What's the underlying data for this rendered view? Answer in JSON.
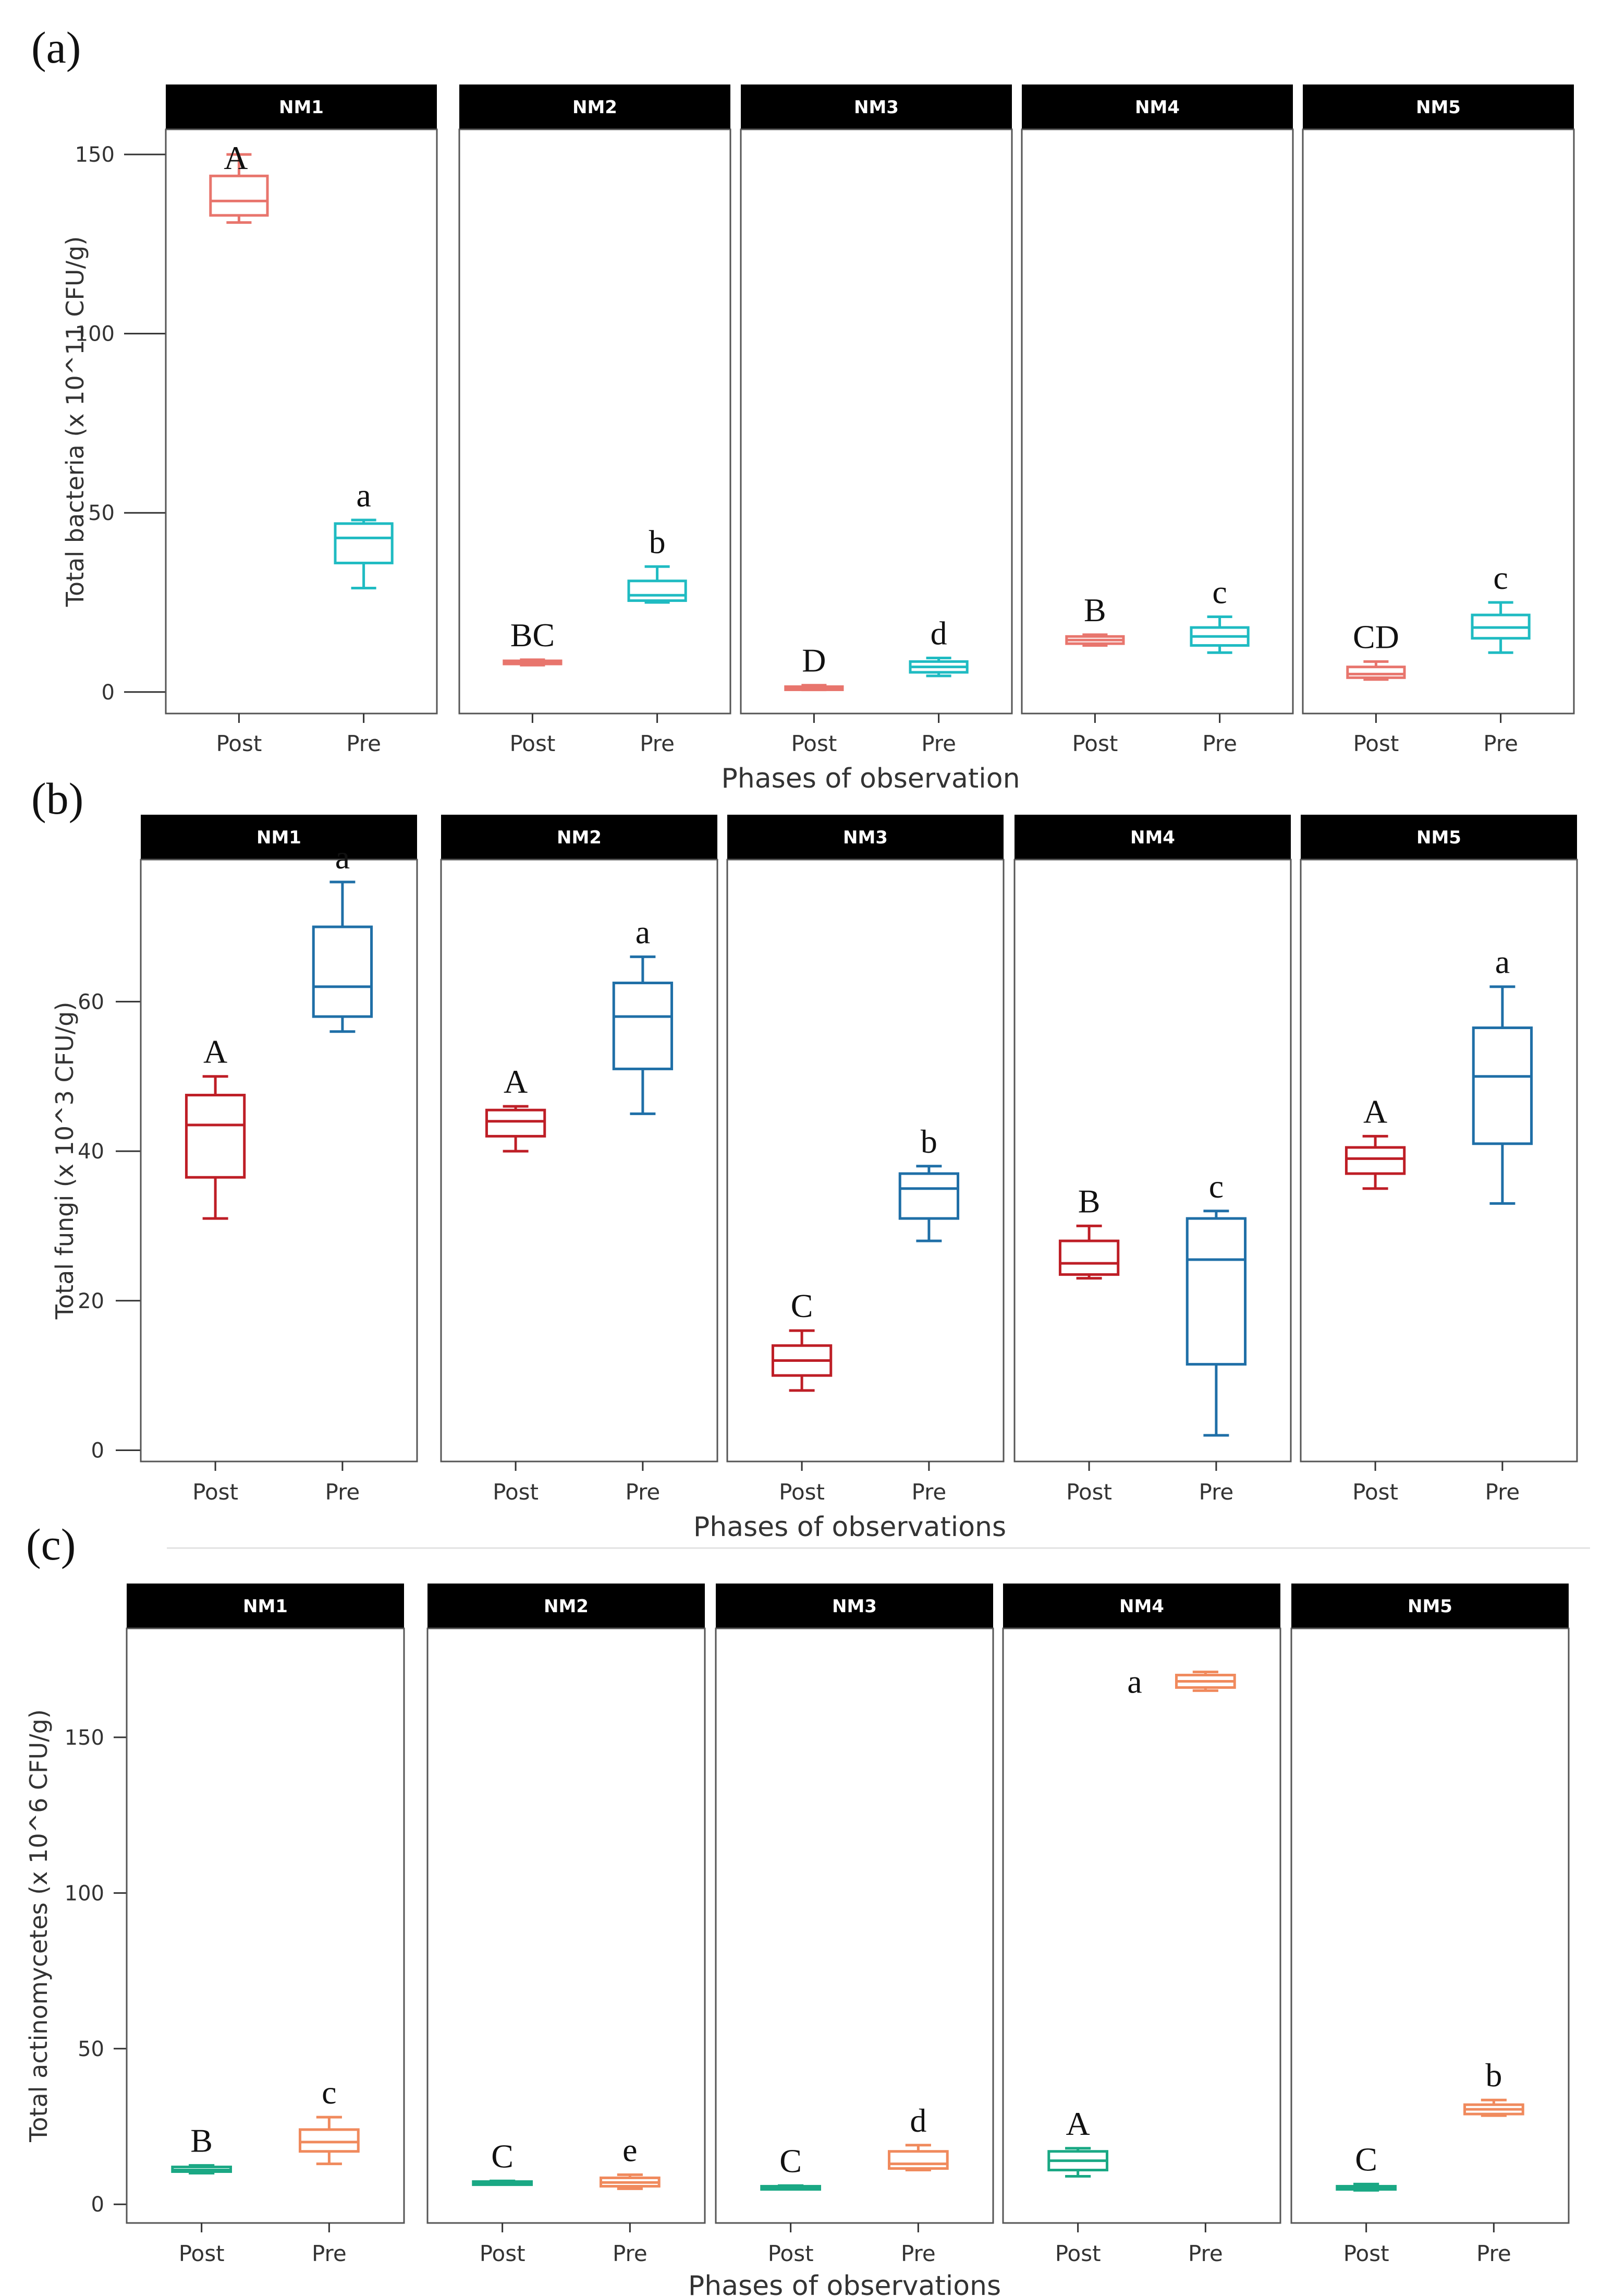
{
  "chart_data": [
    {
      "panel_label": "(a)",
      "type": "boxplot",
      "ylabel": "Total bacteria (x 10^11 CFU/g)",
      "xlabel": "Phases of observation",
      "ylim": [
        -6,
        157
      ],
      "yticks": [
        0,
        50,
        100,
        150
      ],
      "categories": [
        "Post",
        "Pre"
      ],
      "colors": {
        "Post": "#E8756D",
        "Pre": "#1FBBC2"
      },
      "facets": [
        {
          "name": "NM1",
          "boxes": [
            {
              "phase": "Post",
              "min": 131,
              "q1": 133,
              "median": 137,
              "q3": 144,
              "max": 150,
              "letter": "A"
            },
            {
              "phase": "Pre",
              "min": 29,
              "q1": 36,
              "median": 43,
              "q3": 47,
              "max": 48,
              "letter": "a"
            }
          ]
        },
        {
          "name": "NM2",
          "boxes": [
            {
              "phase": "Post",
              "min": 7.5,
              "q1": 8,
              "median": 8.3,
              "q3": 8.7,
              "max": 9,
              "letter": "BC"
            },
            {
              "phase": "Pre",
              "min": 25,
              "q1": 25.5,
              "median": 27,
              "q3": 31,
              "max": 35,
              "letter": "b"
            }
          ]
        },
        {
          "name": "NM3",
          "boxes": [
            {
              "phase": "Post",
              "min": 0.6,
              "q1": 0.9,
              "median": 1.2,
              "q3": 1.5,
              "max": 1.9,
              "letter": "D"
            },
            {
              "phase": "Pre",
              "min": 4.5,
              "q1": 5.5,
              "median": 7,
              "q3": 8.5,
              "max": 9.5,
              "letter": "d"
            }
          ]
        },
        {
          "name": "NM4",
          "boxes": [
            {
              "phase": "Post",
              "min": 13,
              "q1": 13.5,
              "median": 14.5,
              "q3": 15.5,
              "max": 16,
              "letter": "B"
            },
            {
              "phase": "Pre",
              "min": 11,
              "q1": 13,
              "median": 15.5,
              "q3": 18,
              "max": 21,
              "letter": "c"
            }
          ]
        },
        {
          "name": "NM5",
          "boxes": [
            {
              "phase": "Post",
              "min": 3.5,
              "q1": 4,
              "median": 5,
              "q3": 7,
              "max": 8.5,
              "letter": "CD"
            },
            {
              "phase": "Pre",
              "min": 11,
              "q1": 15,
              "median": 18,
              "q3": 21.5,
              "max": 25,
              "letter": "c"
            }
          ]
        }
      ]
    },
    {
      "panel_label": "(b)",
      "type": "boxplot",
      "ylabel": "Total fungi (x 10^3 CFU/g)",
      "xlabel": "Phases of observations",
      "ylim": [
        -1.5,
        79
      ],
      "yticks": [
        0,
        20,
        40,
        60
      ],
      "categories": [
        "Post",
        "Pre"
      ],
      "colors": {
        "Post": "#BE1E26",
        "Pre": "#1F6FA7"
      },
      "facets": [
        {
          "name": "NM1",
          "boxes": [
            {
              "phase": "Post",
              "min": 31,
              "q1": 36.5,
              "median": 43.5,
              "q3": 47.5,
              "max": 50,
              "letter": "A"
            },
            {
              "phase": "Pre",
              "min": 56,
              "q1": 58,
              "median": 62,
              "q3": 70,
              "max": 76,
              "letter": "a"
            }
          ]
        },
        {
          "name": "NM2",
          "boxes": [
            {
              "phase": "Post",
              "min": 40,
              "q1": 42,
              "median": 44,
              "q3": 45.5,
              "max": 46,
              "letter": "A"
            },
            {
              "phase": "Pre",
              "min": 45,
              "q1": 51,
              "median": 58,
              "q3": 62.5,
              "max": 66,
              "letter": "a"
            }
          ]
        },
        {
          "name": "NM3",
          "boxes": [
            {
              "phase": "Post",
              "min": 8,
              "q1": 10,
              "median": 12,
              "q3": 14,
              "max": 16,
              "letter": "C"
            },
            {
              "phase": "Pre",
              "min": 28,
              "q1": 31,
              "median": 35,
              "q3": 37,
              "max": 38,
              "letter": "b"
            }
          ]
        },
        {
          "name": "NM4",
          "boxes": [
            {
              "phase": "Post",
              "min": 23,
              "q1": 23.5,
              "median": 25,
              "q3": 28,
              "max": 30,
              "letter": "B"
            },
            {
              "phase": "Pre",
              "min": 2,
              "q1": 11.5,
              "median": 25.5,
              "q3": 31,
              "max": 32,
              "letter": "c"
            }
          ]
        },
        {
          "name": "NM5",
          "boxes": [
            {
              "phase": "Post",
              "min": 35,
              "q1": 37,
              "median": 39,
              "q3": 40.5,
              "max": 42,
              "letter": "A"
            },
            {
              "phase": "Pre",
              "min": 33,
              "q1": 41,
              "median": 50,
              "q3": 56.5,
              "max": 62,
              "letter": "a"
            }
          ]
        }
      ]
    },
    {
      "panel_label": "(c)",
      "type": "boxplot",
      "ylabel": "Total actinomycetes (x 10^6 CFU/g)",
      "xlabel": "Phases of observations",
      "ylim": [
        -6,
        185
      ],
      "yticks": [
        0,
        50,
        100,
        150
      ],
      "categories": [
        "Post",
        "Pre"
      ],
      "colors": {
        "Post": "#1AA884",
        "Pre": "#F08A5D"
      },
      "facets": [
        {
          "name": "NM1",
          "boxes": [
            {
              "phase": "Post",
              "min": 10,
              "q1": 10.5,
              "median": 11,
              "q3": 12,
              "max": 12.5,
              "letter": "B"
            },
            {
              "phase": "Pre",
              "min": 13,
              "q1": 17,
              "median": 20,
              "q3": 24,
              "max": 28,
              "letter": "c"
            }
          ]
        },
        {
          "name": "NM2",
          "boxes": [
            {
              "phase": "Post",
              "min": 6.5,
              "q1": 6.8,
              "median": 7,
              "q3": 7.3,
              "max": 7.5,
              "letter": "C"
            },
            {
              "phase": "Pre",
              "min": 5,
              "q1": 5.8,
              "median": 7,
              "q3": 8.5,
              "max": 9.5,
              "letter": "e"
            }
          ]
        },
        {
          "name": "NM3",
          "boxes": [
            {
              "phase": "Post",
              "min": 5,
              "q1": 5.2,
              "median": 5.5,
              "q3": 5.8,
              "max": 6,
              "letter": "C"
            },
            {
              "phase": "Pre",
              "min": 11,
              "q1": 11.5,
              "median": 13,
              "q3": 17,
              "max": 19,
              "letter": "d"
            }
          ]
        },
        {
          "name": "NM4",
          "boxes": [
            {
              "phase": "Post",
              "min": 9,
              "q1": 11,
              "median": 14,
              "q3": 17,
              "max": 18,
              "letter": "A"
            },
            {
              "phase": "Pre",
              "min": 165,
              "q1": 166,
              "median": 168,
              "q3": 170,
              "max": 171,
              "letter": "a"
            }
          ]
        },
        {
          "name": "NM5",
          "boxes": [
            {
              "phase": "Post",
              "min": 4.5,
              "q1": 4.8,
              "median": 5.2,
              "q3": 5.8,
              "max": 6.5,
              "letter": "C"
            },
            {
              "phase": "Pre",
              "min": 28.5,
              "q1": 29,
              "median": 30.5,
              "q3": 32,
              "max": 33.5,
              "letter": "b"
            }
          ]
        }
      ]
    }
  ]
}
